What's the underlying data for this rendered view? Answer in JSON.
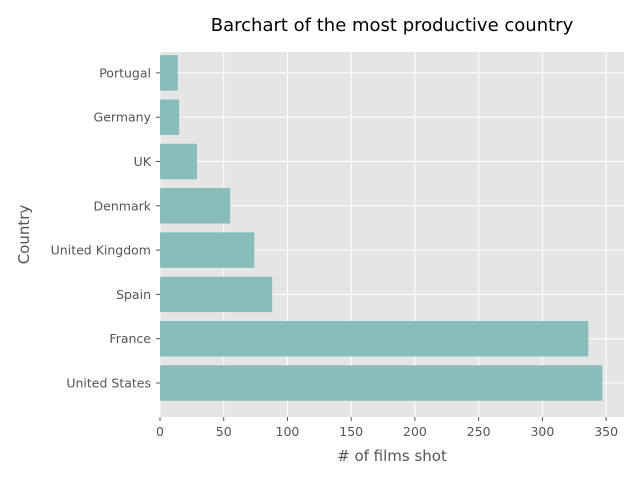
{
  "chart_data": {
    "type": "bar",
    "orientation": "horizontal",
    "title": "Barchart of the most productive country",
    "xlabel": "# of films shot",
    "ylabel": "Country",
    "categories": [
      "United States",
      "France",
      "Spain",
      "United Kingdom",
      "Denmark",
      "UK",
      "Germany",
      "Portugal"
    ],
    "values": [
      347,
      336,
      88,
      74,
      55,
      29,
      15,
      14
    ],
    "xlim": [
      0,
      364
    ],
    "xticks": [
      0,
      50,
      100,
      150,
      200,
      250,
      300,
      350
    ],
    "grid": true,
    "legend": "none",
    "colors": {
      "bar": "#88bdbc",
      "plot_background": "#e5e5e5",
      "grid": "#ffffff",
      "text": "#555555"
    }
  }
}
